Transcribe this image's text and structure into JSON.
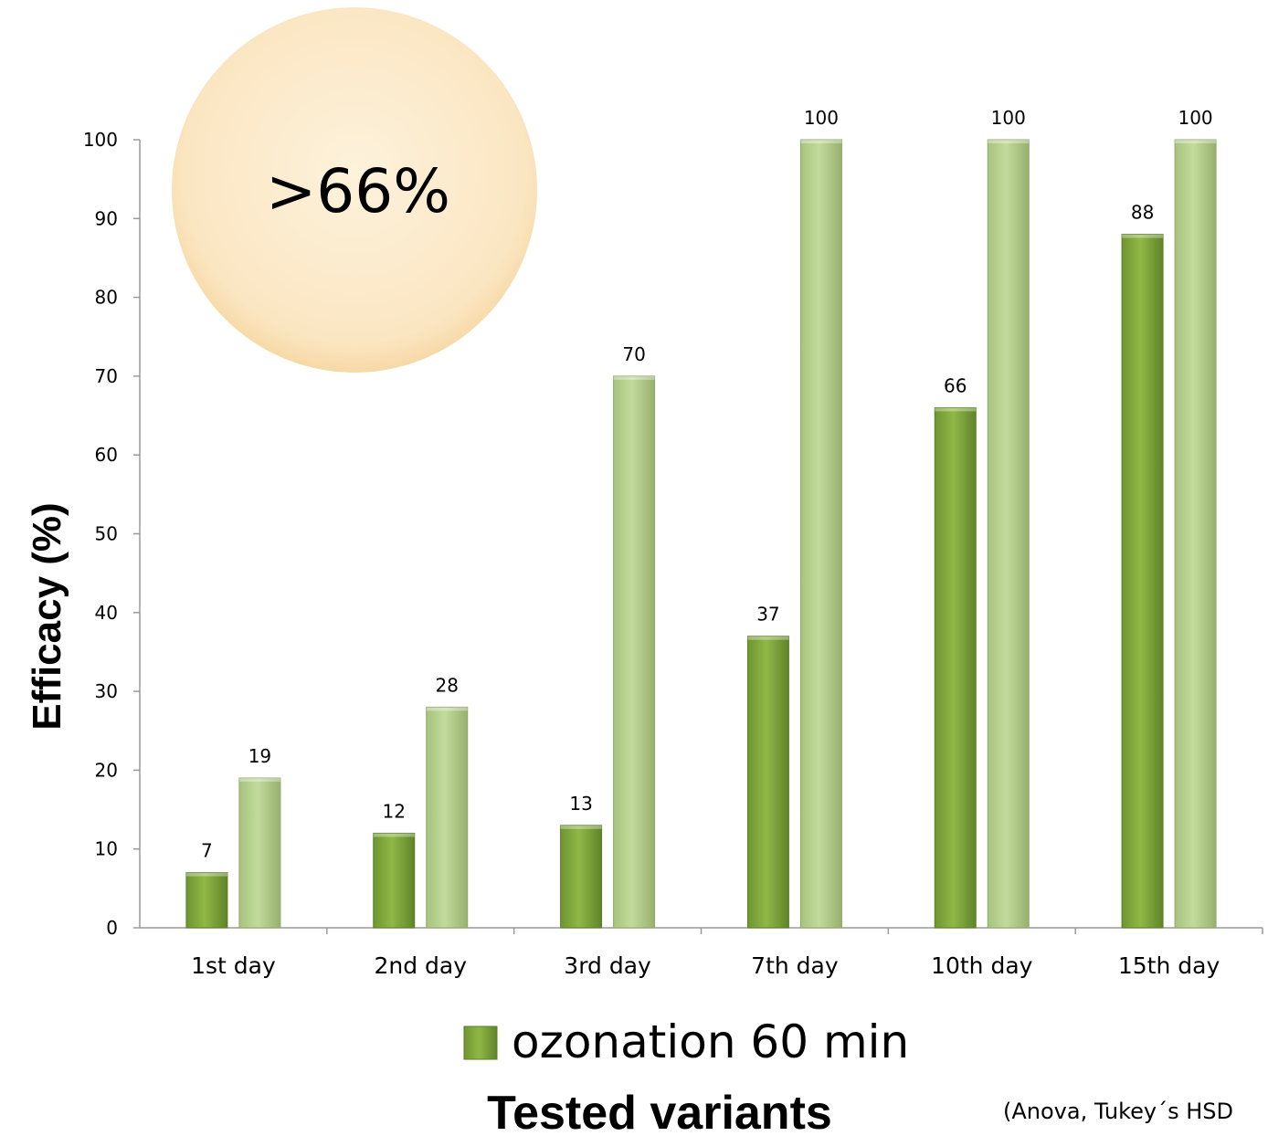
{
  "colors": {
    "dark_series": "#7fa83a",
    "light_series": "#b7d38c",
    "badge": "#fbeacb",
    "axis": "#9a9a9a"
  },
  "badge": {
    "text": ">66%"
  },
  "note": "(Anova, Tukey´s HSD",
  "chart_data": {
    "type": "bar",
    "title": "",
    "xlabel": "Tested variants",
    "ylabel": "Efficacy (%)",
    "ylim": [
      0,
      100
    ],
    "yticks": [
      "0",
      "10",
      "20",
      "30",
      "40",
      "50",
      "60",
      "70",
      "80",
      "90",
      "100"
    ],
    "grid": false,
    "legend_position": "bottom",
    "categories": [
      "1st day",
      "2nd day",
      "3rd day",
      "7th day",
      "10th day",
      "15th day"
    ],
    "series": [
      {
        "name": "ozonation 60 min",
        "color": "#7fa83a",
        "values": [
          7,
          12,
          13,
          37,
          66,
          88
        ]
      },
      {
        "color": "#b7d38c",
        "values": [
          19,
          28,
          70,
          100,
          100,
          100
        ]
      }
    ]
  }
}
